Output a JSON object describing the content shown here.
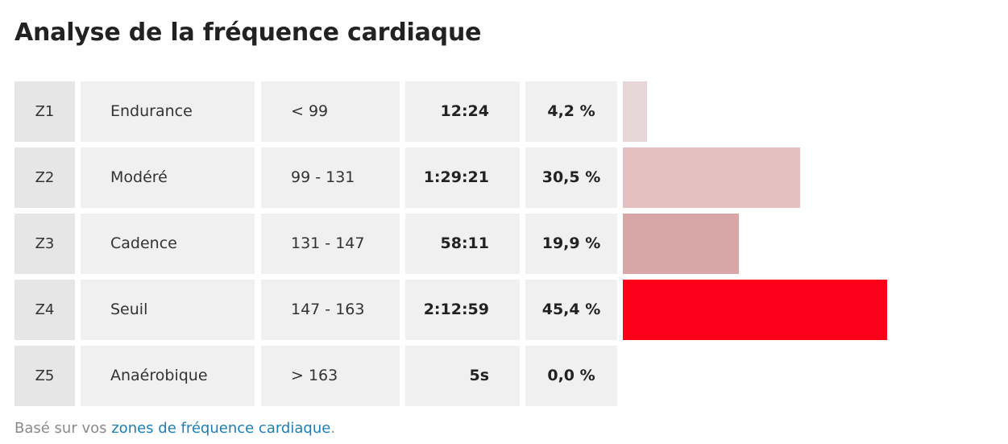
{
  "page": {
    "title": "Analyse de la fréquence cardiaque"
  },
  "zones": [
    {
      "zone": "Z1",
      "name": "Endurance",
      "range": "< 99",
      "time": "12:24",
      "percent": "4,2 %",
      "percent_value": 4.2,
      "bar_color": "#e6d6d8"
    },
    {
      "zone": "Z2",
      "name": "Modéré",
      "range": "99 - 131",
      "time": "1:29:21",
      "percent": "30,5 %",
      "percent_value": 30.5,
      "bar_color": "#e5c0c1"
    },
    {
      "zone": "Z3",
      "name": "Cadence",
      "range": "131 - 147",
      "time": "58:11",
      "percent": "19,9 %",
      "percent_value": 19.9,
      "bar_color": "#d8a6a6"
    },
    {
      "zone": "Z4",
      "name": "Seuil",
      "range": "147 - 163",
      "time": "2:12:59",
      "percent": "45,4 %",
      "percent_value": 45.4,
      "bar_color": "#fc001a"
    },
    {
      "zone": "Z5",
      "name": "Anaérobique",
      "range": "> 163",
      "time": "5s",
      "percent": "0,0 %",
      "percent_value": 0.0,
      "bar_color": "#e6d6d8"
    }
  ],
  "footer": {
    "prefix": "Basé sur vos ",
    "link_text": "zones de fréquence cardiaque",
    "suffix": "."
  },
  "colors": {
    "link": "#1b7eb6",
    "muted_text": "#8a8a8a",
    "cell_bg": "#f0f0f0",
    "zone_cell_bg": "#e6e6e6"
  }
}
